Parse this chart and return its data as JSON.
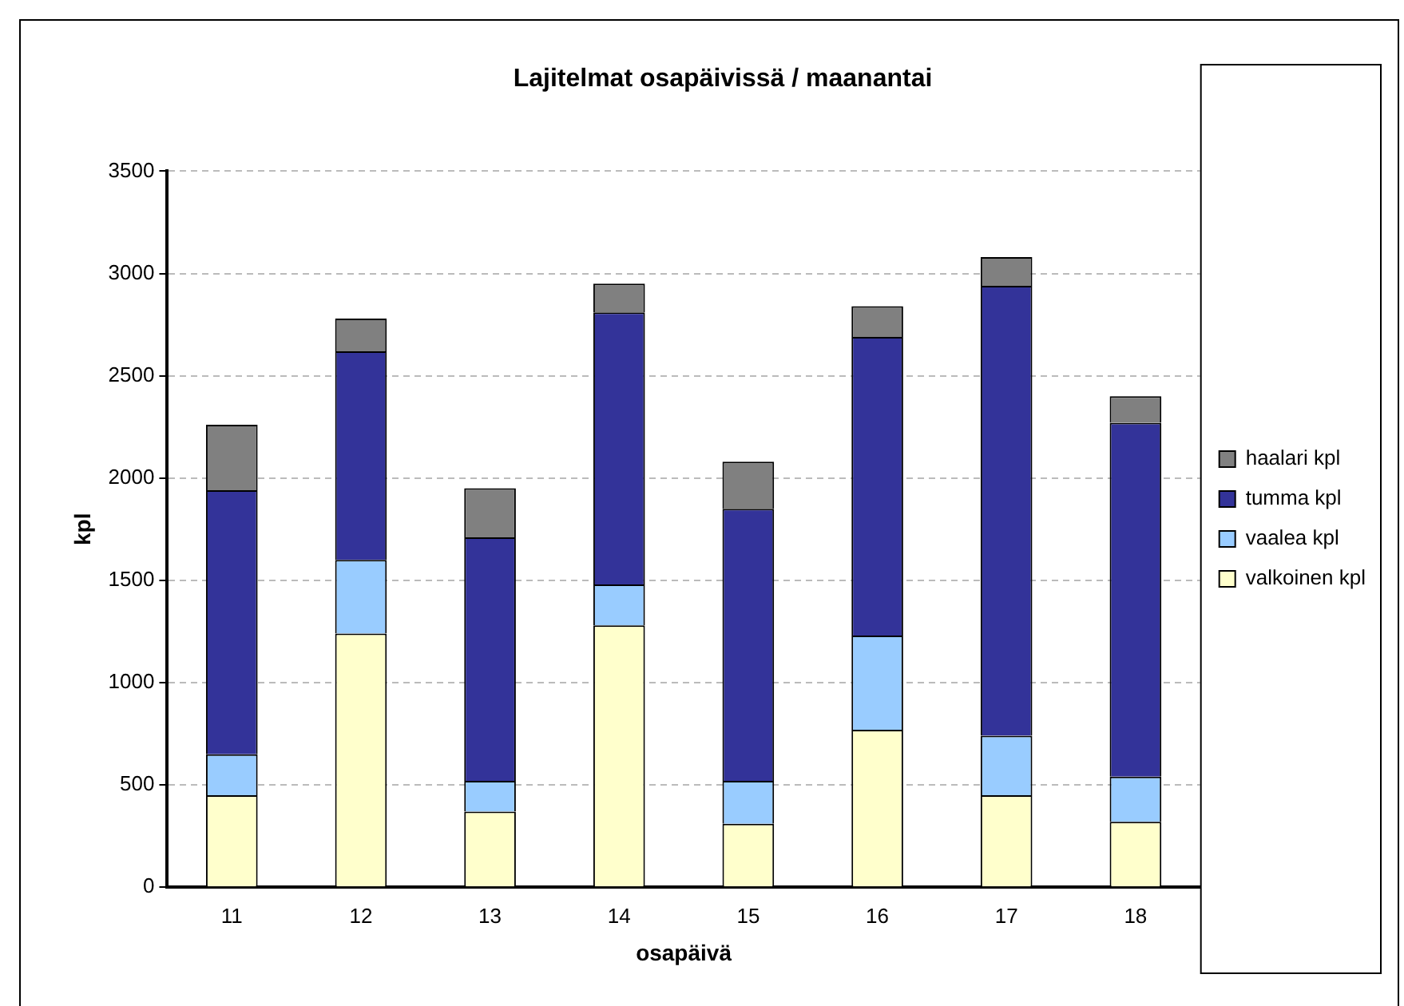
{
  "chart_data": {
    "type": "bar",
    "title": "Lajitelmat osapäivissä / maanantai",
    "xlabel": "osapäivä",
    "ylabel": "kpl",
    "categories": [
      "11",
      "12",
      "13",
      "14",
      "15",
      "16",
      "17",
      "18"
    ],
    "stacked": true,
    "series": [
      {
        "name": "valkoinen kpl",
        "color": "#ffffcc",
        "values": [
          450,
          1240,
          370,
          1280,
          310,
          770,
          450,
          320
        ]
      },
      {
        "name": "vaalea kpl",
        "color": "#99ccff",
        "values": [
          200,
          360,
          150,
          200,
          210,
          460,
          290,
          220
        ]
      },
      {
        "name": "tumma kpl",
        "color": "#333399",
        "values": [
          1290,
          1020,
          1190,
          1330,
          1330,
          1460,
          2200,
          1730
        ]
      },
      {
        "name": "haalari kpl",
        "color": "#808080",
        "values": [
          320,
          160,
          240,
          140,
          230,
          150,
          140,
          130
        ]
      }
    ],
    "ylim": [
      0,
      3500
    ],
    "yticks": [
      0,
      500,
      1000,
      1500,
      2000,
      2500,
      3000,
      3500
    ],
    "grid": "y",
    "legend": "right"
  }
}
